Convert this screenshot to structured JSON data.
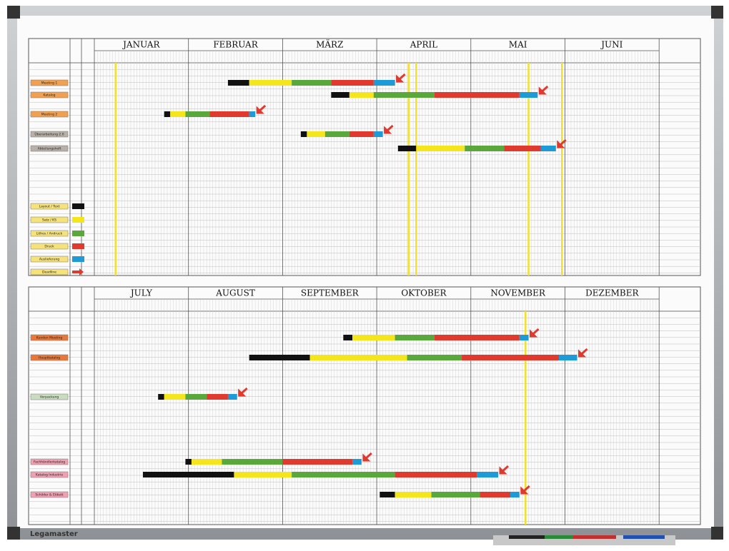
{
  "brand": "Legamaster",
  "halves": [
    {
      "months": [
        "JANUAR",
        "FEBRUAR",
        "MÄRZ",
        "APRIL",
        "MAI",
        "JUNI"
      ],
      "tasks": [
        {
          "label": "Meeting 1",
          "label_color": "#f0a050",
          "days": [
            44,
            51,
            65,
            78,
            92,
            99
          ]
        },
        {
          "label": "Katalog",
          "label_color": "#f0a050",
          "days": [
            78,
            84,
            92,
            112,
            140,
            146
          ]
        },
        {
          "label": "Meeting 2",
          "label_color": "#f0a050",
          "days": [
            23,
            25,
            30,
            38,
            51,
            53
          ]
        },
        {
          "label": "Überarbeitung 2.0",
          "label_color": "#b8b0a8",
          "days": [
            68,
            70,
            76,
            84,
            92,
            95
          ]
        },
        {
          "label": "Abteilungsheft",
          "label_color": "#b8b0a8",
          "days": [
            100,
            106,
            122,
            135,
            147,
            152
          ]
        }
      ],
      "legend": [
        {
          "label": "Layout / Text",
          "color": "#111111"
        },
        {
          "label": "Satz / KS",
          "color": "#f5e51c"
        },
        {
          "label": "Lithos / Andruck",
          "color": "#5aa83c"
        },
        {
          "label": "Druck",
          "color": "#e03a2f"
        },
        {
          "label": "Auslieferung",
          "color": "#1e9ad6"
        },
        {
          "label": "Deadline",
          "color": "#e03a2f"
        }
      ],
      "markers": [
        7,
        103.5,
        106,
        143,
        154
      ]
    },
    {
      "months": [
        "JULY",
        "AUGUST",
        "SEPTEMBER",
        "OKTOBER",
        "NOVEMBER",
        "DEZEMBER"
      ],
      "tasks": [
        {
          "label": "Kunden Meeting",
          "label_color": "#e8773a",
          "days": [
            82,
            85,
            99,
            112,
            140,
            143
          ]
        },
        {
          "label": "Hauptkatalog",
          "label_color": "#e8773a",
          "days": [
            51,
            71,
            103,
            121,
            153,
            159
          ]
        },
        {
          "label": "Verpackung",
          "label_color": "#c8dcc0",
          "days": [
            21,
            23,
            30,
            37,
            44,
            47
          ]
        },
        {
          "label": "Fachhändlerkatalog",
          "label_color": "#f0a0b0",
          "days": [
            30,
            32,
            42,
            62,
            85,
            88
          ]
        },
        {
          "label": "Katalog Industrie",
          "label_color": "#f0a0b0",
          "days": [
            16,
            46,
            65,
            99,
            126,
            133
          ]
        },
        {
          "label": "Schilder & Etikett",
          "label_color": "#f0a0b0",
          "days": [
            94,
            99,
            111,
            127,
            137,
            140
          ]
        }
      ],
      "markers": [
        142
      ]
    }
  ]
}
